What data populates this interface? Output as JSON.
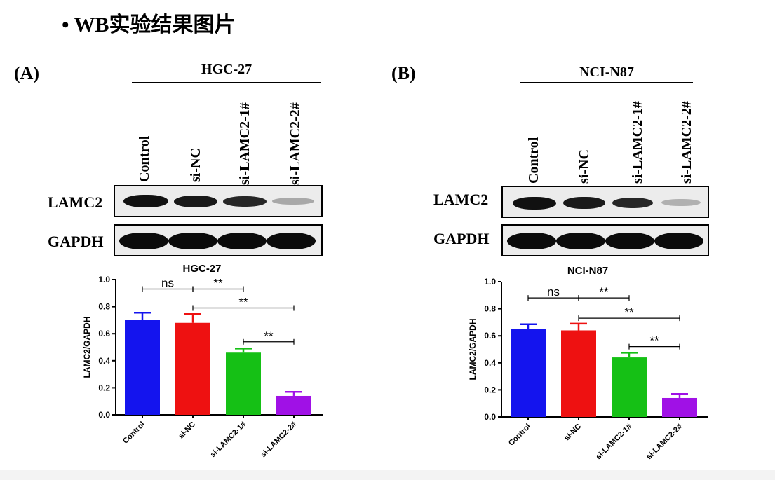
{
  "header": {
    "bullet": "•",
    "title": "WB实验结果图片"
  },
  "colors": {
    "bar1": "#1414ee",
    "bar2": "#ee1111",
    "bar3": "#15c015",
    "bar4": "#a011e6"
  },
  "panels": [
    {
      "label": "(A)",
      "cell_line": "HGC-27",
      "lanes": [
        "Control",
        "si-NC",
        "si-LAMC2-1#",
        "si-LAMC2-2#"
      ],
      "proteins": [
        "LAMC2",
        "GAPDH"
      ],
      "chart_data": {
        "type": "bar",
        "title": "HGC-27",
        "ylabel": "LAMC2/GAPDH",
        "xlabel": "",
        "ylim": [
          0,
          1.0
        ],
        "yticks": [
          "0.0",
          "0.2",
          "0.4",
          "0.6",
          "0.8",
          "1.0"
        ],
        "categories": [
          "Control",
          "si-NC",
          "si-LAMC2-1#",
          "si-LAMC2-2#"
        ],
        "values": [
          0.7,
          0.68,
          0.46,
          0.14
        ],
        "errors": [
          0.055,
          0.065,
          0.03,
          0.03
        ],
        "significance": [
          {
            "from": 0,
            "to": 1,
            "label": "ns",
            "y": 0.93
          },
          {
            "from": 1,
            "to": 2,
            "label": "**",
            "y": 0.93
          },
          {
            "from": 1,
            "to": 3,
            "label": "**",
            "y": 0.79
          },
          {
            "from": 2,
            "to": 3,
            "label": "**",
            "y": 0.54
          }
        ]
      }
    },
    {
      "label": "(B)",
      "cell_line": "NCI-N87",
      "lanes": [
        "Control",
        "si-NC",
        "si-LAMC2-1#",
        "si-LAMC2-2#"
      ],
      "proteins": [
        "LAMC2",
        "GAPDH"
      ],
      "chart_data": {
        "type": "bar",
        "title": "NCI-N87",
        "ylabel": "LAMC2/GAPDH",
        "xlabel": "",
        "ylim": [
          0,
          1.0
        ],
        "yticks": [
          "0.0",
          "0.2",
          "0.4",
          "0.6",
          "0.8",
          "1.0"
        ],
        "categories": [
          "Control",
          "si-NC",
          "si-LAMC2-1#",
          "si-LAMC2-2#"
        ],
        "values": [
          0.65,
          0.64,
          0.44,
          0.14
        ],
        "errors": [
          0.035,
          0.05,
          0.035,
          0.03
        ],
        "significance": [
          {
            "from": 0,
            "to": 1,
            "label": "ns",
            "y": 0.88
          },
          {
            "from": 1,
            "to": 2,
            "label": "**",
            "y": 0.88
          },
          {
            "from": 1,
            "to": 3,
            "label": "**",
            "y": 0.73
          },
          {
            "from": 2,
            "to": 3,
            "label": "**",
            "y": 0.52
          }
        ]
      }
    }
  ]
}
